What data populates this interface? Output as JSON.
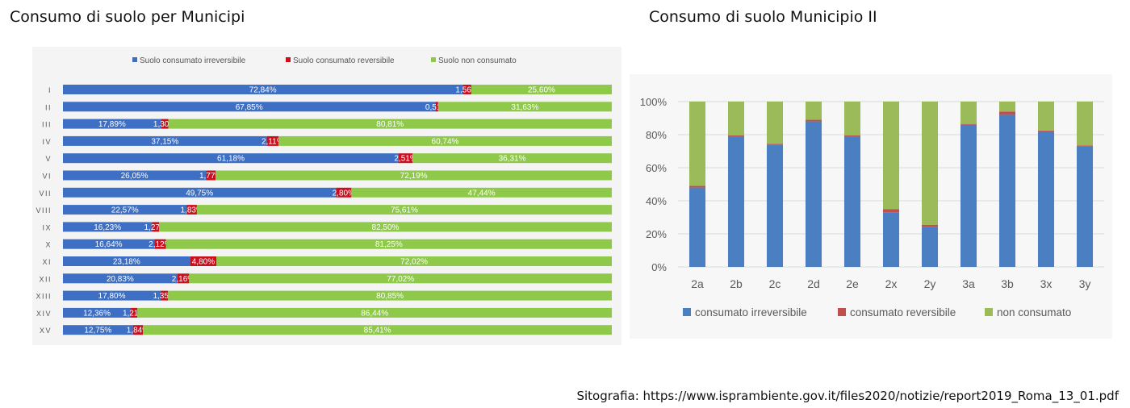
{
  "titles": {
    "left": "Consumo di suolo per Municipi",
    "right": "Consumo di suolo Municipio II"
  },
  "source_text": "Sitografia: https://www.isprambiente.gov.it/files2020/notizie/report2019_Roma_13_01.pdf",
  "colors": {
    "irreversibile": "#3d6fc4",
    "reversibile": "#c8101f",
    "non_consumato": "#8fc94a",
    "right_irreversibile": "#4a7fc1",
    "right_reversibile": "#c0504d",
    "right_non_consumato": "#9bbb59"
  },
  "chart_data": [
    {
      "type": "bar",
      "orientation": "horizontal",
      "stacked": true,
      "title": "Consumo di suolo per Municipi",
      "legend_position": "top",
      "categories": [
        "I",
        "II",
        "III",
        "IV",
        "V",
        "VI",
        "VII",
        "VIII",
        "IX",
        "X",
        "XI",
        "XII",
        "XIII",
        "XIV",
        "XV"
      ],
      "series": [
        {
          "name": "Suolo consumato irreversibile",
          "values": [
            72.84,
            67.85,
            17.89,
            37.15,
            61.18,
            26.05,
            49.75,
            22.57,
            16.23,
            16.64,
            23.18,
            20.83,
            17.8,
            12.36,
            12.75
          ],
          "labels": [
            "72,84%",
            "67,85%",
            "17,89%",
            "37,15%",
            "61,18%",
            "26,05%",
            "49,75%",
            "22,57%",
            "16,23%",
            "16,64%",
            "23,18%",
            "20,83%",
            "17,80%",
            "12,36%",
            "12,75%"
          ]
        },
        {
          "name": "Suolo consumato reversibile",
          "values": [
            1.56,
            0.51,
            1.3,
            2.11,
            2.51,
            1.77,
            2.8,
            1.83,
            1.27,
            2.12,
            4.8,
            2.16,
            1.35,
            1.21,
            1.84
          ],
          "labels": [
            "1,56%",
            "0,51%",
            "1,30%",
            "2,11%",
            "2,51%",
            "1,77%",
            "2,80%",
            "1,83%",
            "1,27%",
            "2,12%",
            "4,80%",
            "2,16%",
            "1,35%",
            "1,21%",
            "1,84%"
          ]
        },
        {
          "name": "Suolo non consumato",
          "values": [
            25.6,
            31.63,
            80.81,
            60.74,
            36.31,
            72.19,
            47.44,
            75.61,
            82.5,
            81.25,
            72.02,
            77.02,
            80.85,
            86.44,
            85.41
          ],
          "labels": [
            "25,60%",
            "31,63%",
            "80,81%",
            "60,74%",
            "36,31%",
            "72,19%",
            "47,44%",
            "75,61%",
            "82,50%",
            "81,25%",
            "72,02%",
            "77,02%",
            "80,85%",
            "86,44%",
            "85,41%"
          ]
        }
      ],
      "xlim": [
        0,
        100
      ],
      "grid": false
    },
    {
      "type": "bar",
      "orientation": "vertical",
      "stacked": true,
      "title": "Consumo di suolo Municipio II",
      "legend_position": "bottom",
      "categories": [
        "2a",
        "2b",
        "2c",
        "2d",
        "2e",
        "2x",
        "2y",
        "3a",
        "3b",
        "3x",
        "3y"
      ],
      "series": [
        {
          "name": "consumato irreversibile",
          "values": [
            48,
            79,
            74,
            88,
            79,
            33,
            24,
            86,
            92,
            82,
            73
          ]
        },
        {
          "name": "consumato reversibile",
          "values": [
            1,
            0.5,
            0.5,
            1,
            0.5,
            2,
            1.5,
            0.5,
            2,
            0.5,
            0.5
          ]
        },
        {
          "name": "non consumato",
          "values": [
            51,
            20.5,
            25.5,
            11,
            20.5,
            65,
            74.5,
            13.5,
            6,
            17.5,
            26.5
          ]
        }
      ],
      "yticks": [
        "0%",
        "20%",
        "40%",
        "60%",
        "80%",
        "100%"
      ],
      "ylim": [
        0,
        100
      ],
      "grid": true
    }
  ]
}
